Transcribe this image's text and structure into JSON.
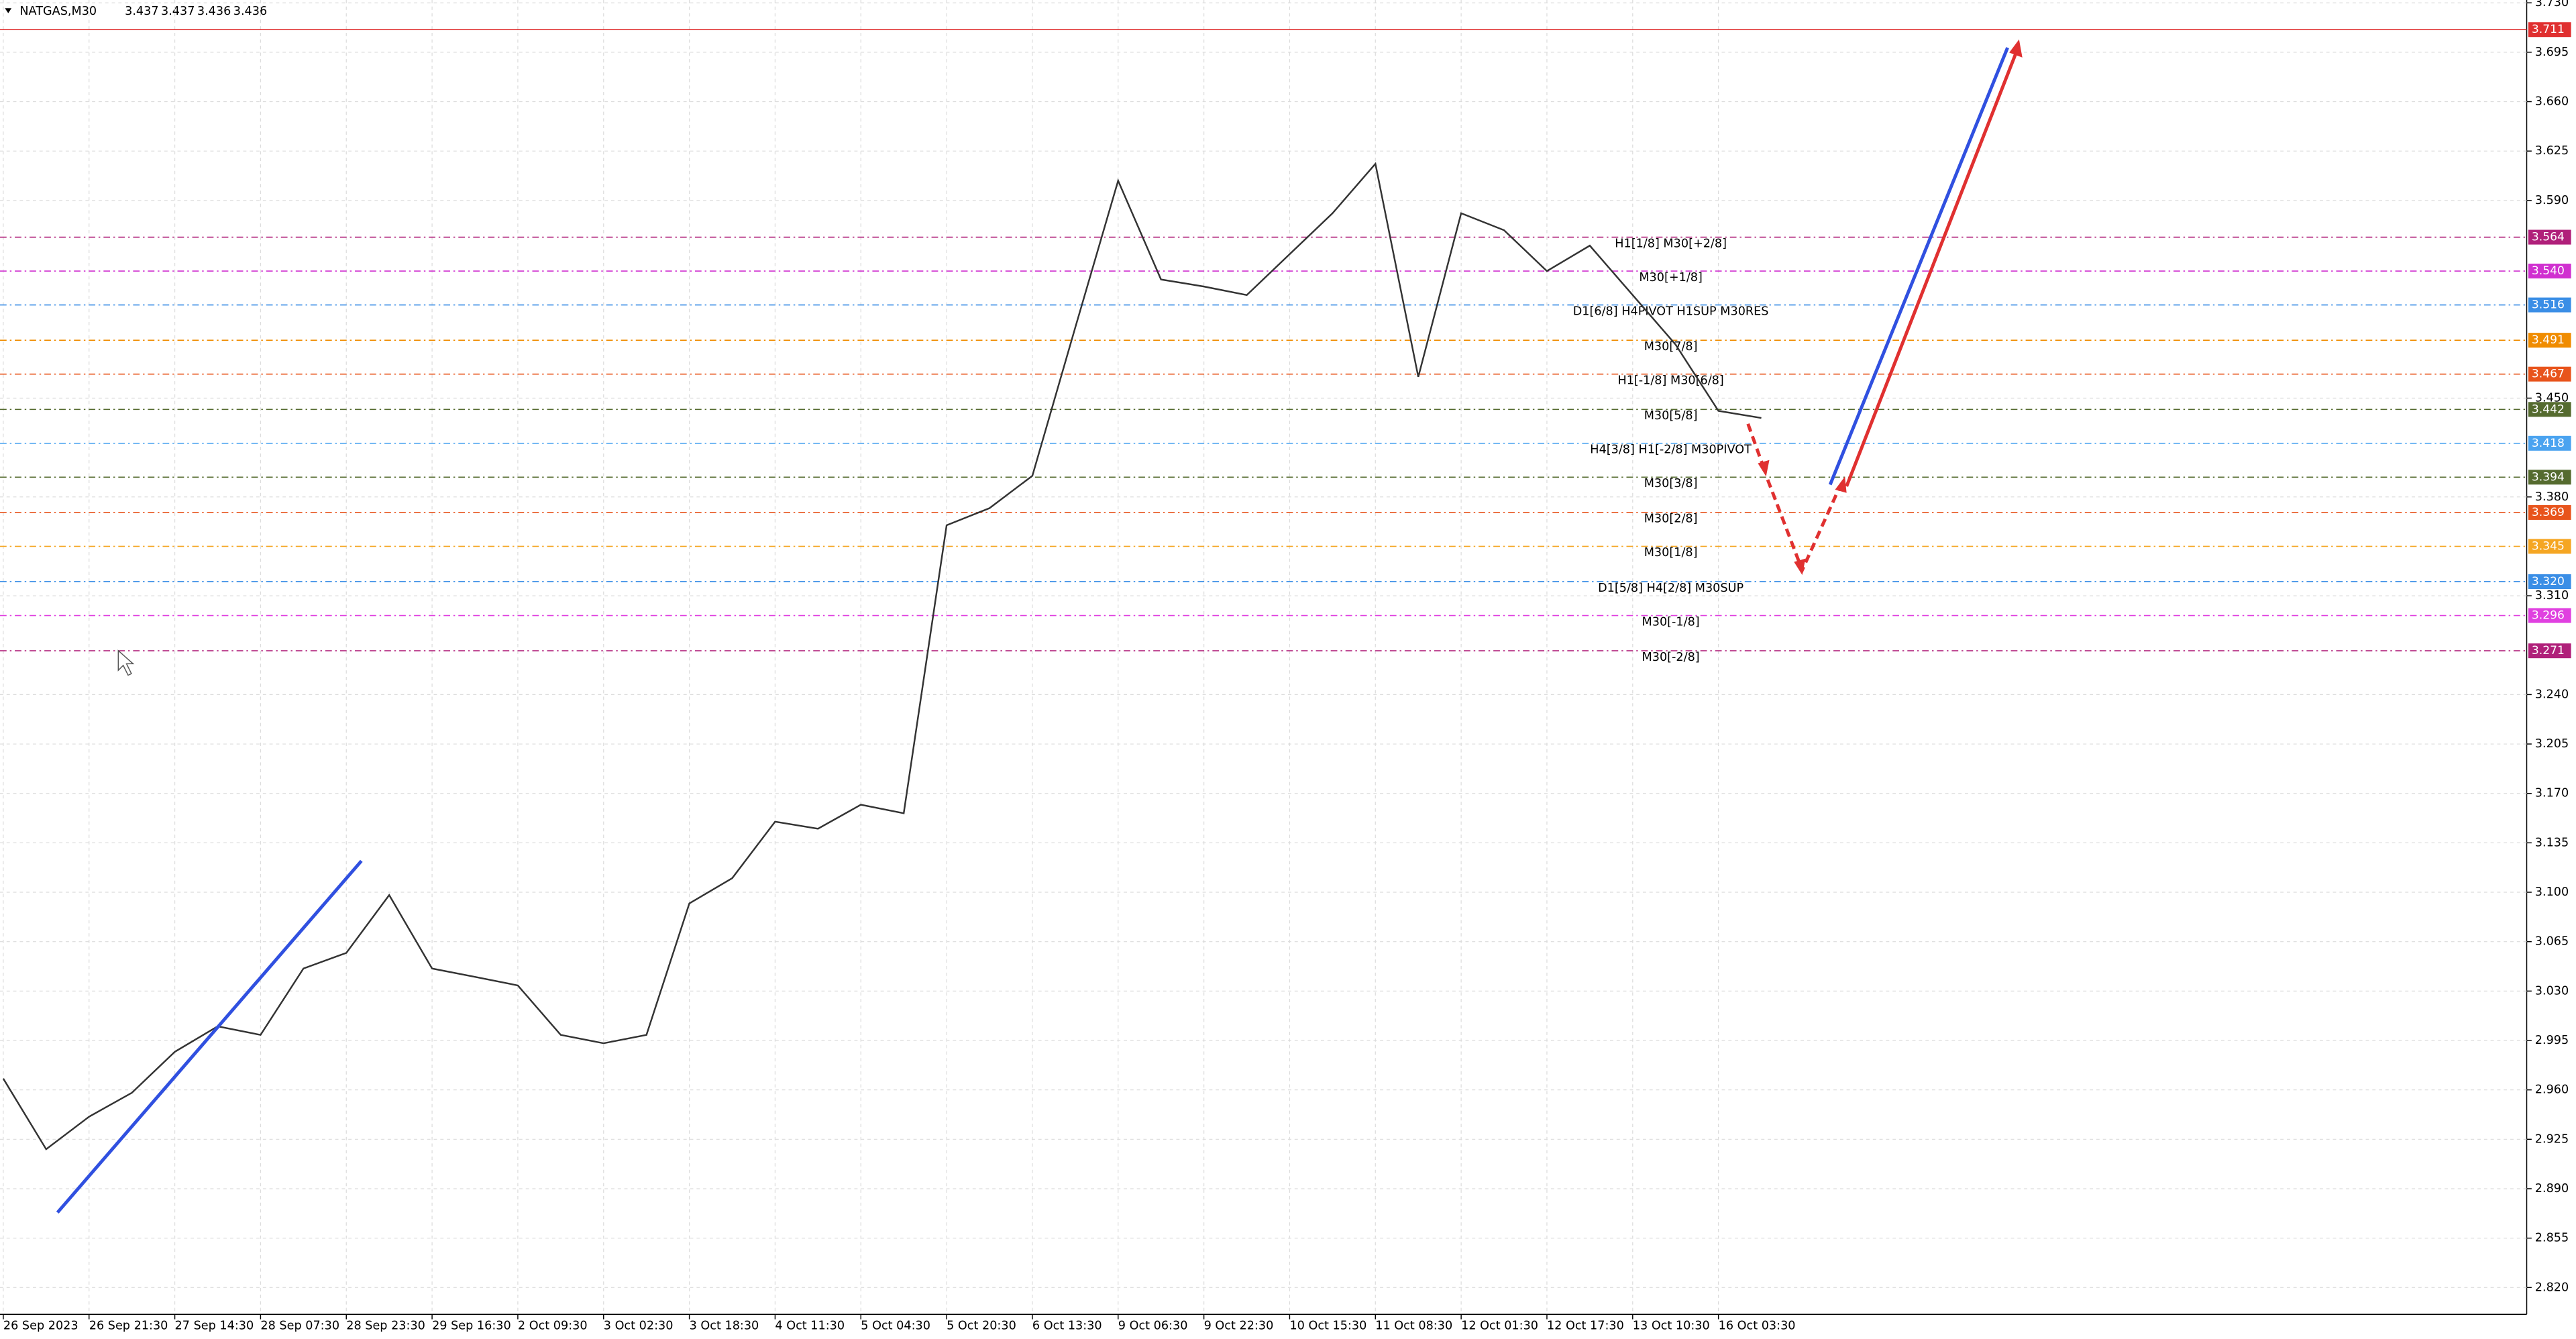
{
  "chart_data": {
    "type": "line",
    "symbol": "NATGAS,M30",
    "ohlc": [
      3.437,
      3.437,
      3.436,
      3.436
    ],
    "categories": [
      "26 Sep 2023",
      null,
      "26 Sep 21:30",
      null,
      "27 Sep 14:30",
      null,
      "28 Sep 07:30",
      null,
      "28 Sep 23:30",
      null,
      "29 Sep 16:30",
      null,
      "2 Oct 09:30",
      null,
      "3 Oct 02:30",
      null,
      "3 Oct 18:30",
      null,
      "4 Oct 11:30",
      null,
      "5 Oct 04:30",
      null,
      "5 Oct 20:30",
      null,
      "6 Oct 13:30",
      null,
      "9 Oct 06:30",
      null,
      "9 Oct 22:30",
      null,
      "10 Oct 15:30",
      null,
      "11 Oct 08:30",
      null,
      "12 Oct 01:30",
      null,
      "12 Oct 17:30",
      null,
      "13 Oct 10:30",
      null,
      "16 Oct 03:30",
      null
    ],
    "values": [
      2.968,
      2.918,
      2.941,
      2.958,
      2.987,
      3.005,
      2.999,
      3.046,
      3.057,
      3.098,
      3.046,
      3.04,
      3.034,
      2.999,
      2.993,
      2.999,
      3.092,
      3.11,
      3.15,
      3.145,
      3.162,
      3.156,
      3.36,
      3.372,
      3.395,
      3.5,
      3.604,
      3.534,
      3.529,
      3.523,
      3.552,
      3.581,
      3.616,
      3.465,
      3.581,
      3.569,
      3.54,
      3.558,
      3.523,
      3.488,
      3.441,
      3.436
    ],
    "color": "#333333",
    "ylim": [
      2.801,
      3.732
    ],
    "yticks": [
      {
        "value": 2.82,
        "label": "2.820"
      },
      2.855,
      {
        "value": 2.89,
        "label": "2.890"
      },
      2.925,
      {
        "value": 2.96,
        "label": "2.960"
      },
      2.995,
      {
        "value": 3.03,
        "label": "3.030"
      },
      3.065,
      {
        "value": 3.1,
        "label": "3.100"
      },
      3.135,
      {
        "value": 3.17,
        "label": "3.170"
      },
      3.205,
      {
        "value": 3.24,
        "label": "3.240"
      },
      {
        "value": 3.31,
        "label": "3.310"
      },
      {
        "value": 3.38,
        "label": "3.380"
      },
      {
        "value": 3.45,
        "label": "3.450"
      },
      {
        "value": 3.59,
        "label": "3.590"
      },
      3.625,
      {
        "value": 3.66,
        "label": "3.660"
      },
      3.695,
      {
        "value": 3.73,
        "label": "3.730"
      }
    ],
    "grid": true,
    "levels": [
      {
        "name": null,
        "value": 3.711,
        "tag": "3.711",
        "color": "#e03030"
      },
      {
        "name": "H1[1/8] M30[+2/8]",
        "value": 3.564,
        "tag": "3.564",
        "color": "#b0207a"
      },
      {
        "name": "M30[+1/8]",
        "value": 3.54,
        "tag": "3.540",
        "color": "#d030d0"
      },
      {
        "name": "D1[6/8] H4PIVOT H1SUP M30RES",
        "value": 3.516,
        "tag": "3.516",
        "color": "#3a8ee6"
      },
      {
        "name": "M30[7/8]",
        "value": 3.491,
        "tag": "3.491",
        "color": "#f08c00"
      },
      {
        "name": "H1[-1/8] M30[6/8]",
        "value": 3.467,
        "tag": "3.467",
        "color": "#e8541c"
      },
      {
        "name": "M30[5/8]",
        "value": 3.442,
        "tag": "3.442",
        "color": "#556b2f"
      },
      {
        "name": "H4[3/8] H1[-2/8] M30PIVOT",
        "value": 3.418,
        "tag": "3.418",
        "color": "#4aa3f0"
      },
      {
        "name": "M30[3/8]",
        "value": 3.394,
        "tag": "3.394",
        "color": "#556b2f"
      },
      {
        "name": "M30[2/8]",
        "value": 3.369,
        "tag": "3.369",
        "color": "#e8541c"
      },
      {
        "name": "M30[1/8]",
        "value": 3.345,
        "tag": "3.345",
        "color": "#f5a623"
      },
      {
        "name": "D1[5/8] H4[2/8] M30SUP",
        "value": 3.32,
        "tag": "3.320",
        "color": "#3a8ee6"
      },
      {
        "name": "M30[-1/8]",
        "value": 3.296,
        "tag": "3.296",
        "color": "#e040e0"
      },
      {
        "name": "M30[-2/8]",
        "value": 3.271,
        "tag": "3.271",
        "color": "#b0207a"
      }
    ]
  }
}
